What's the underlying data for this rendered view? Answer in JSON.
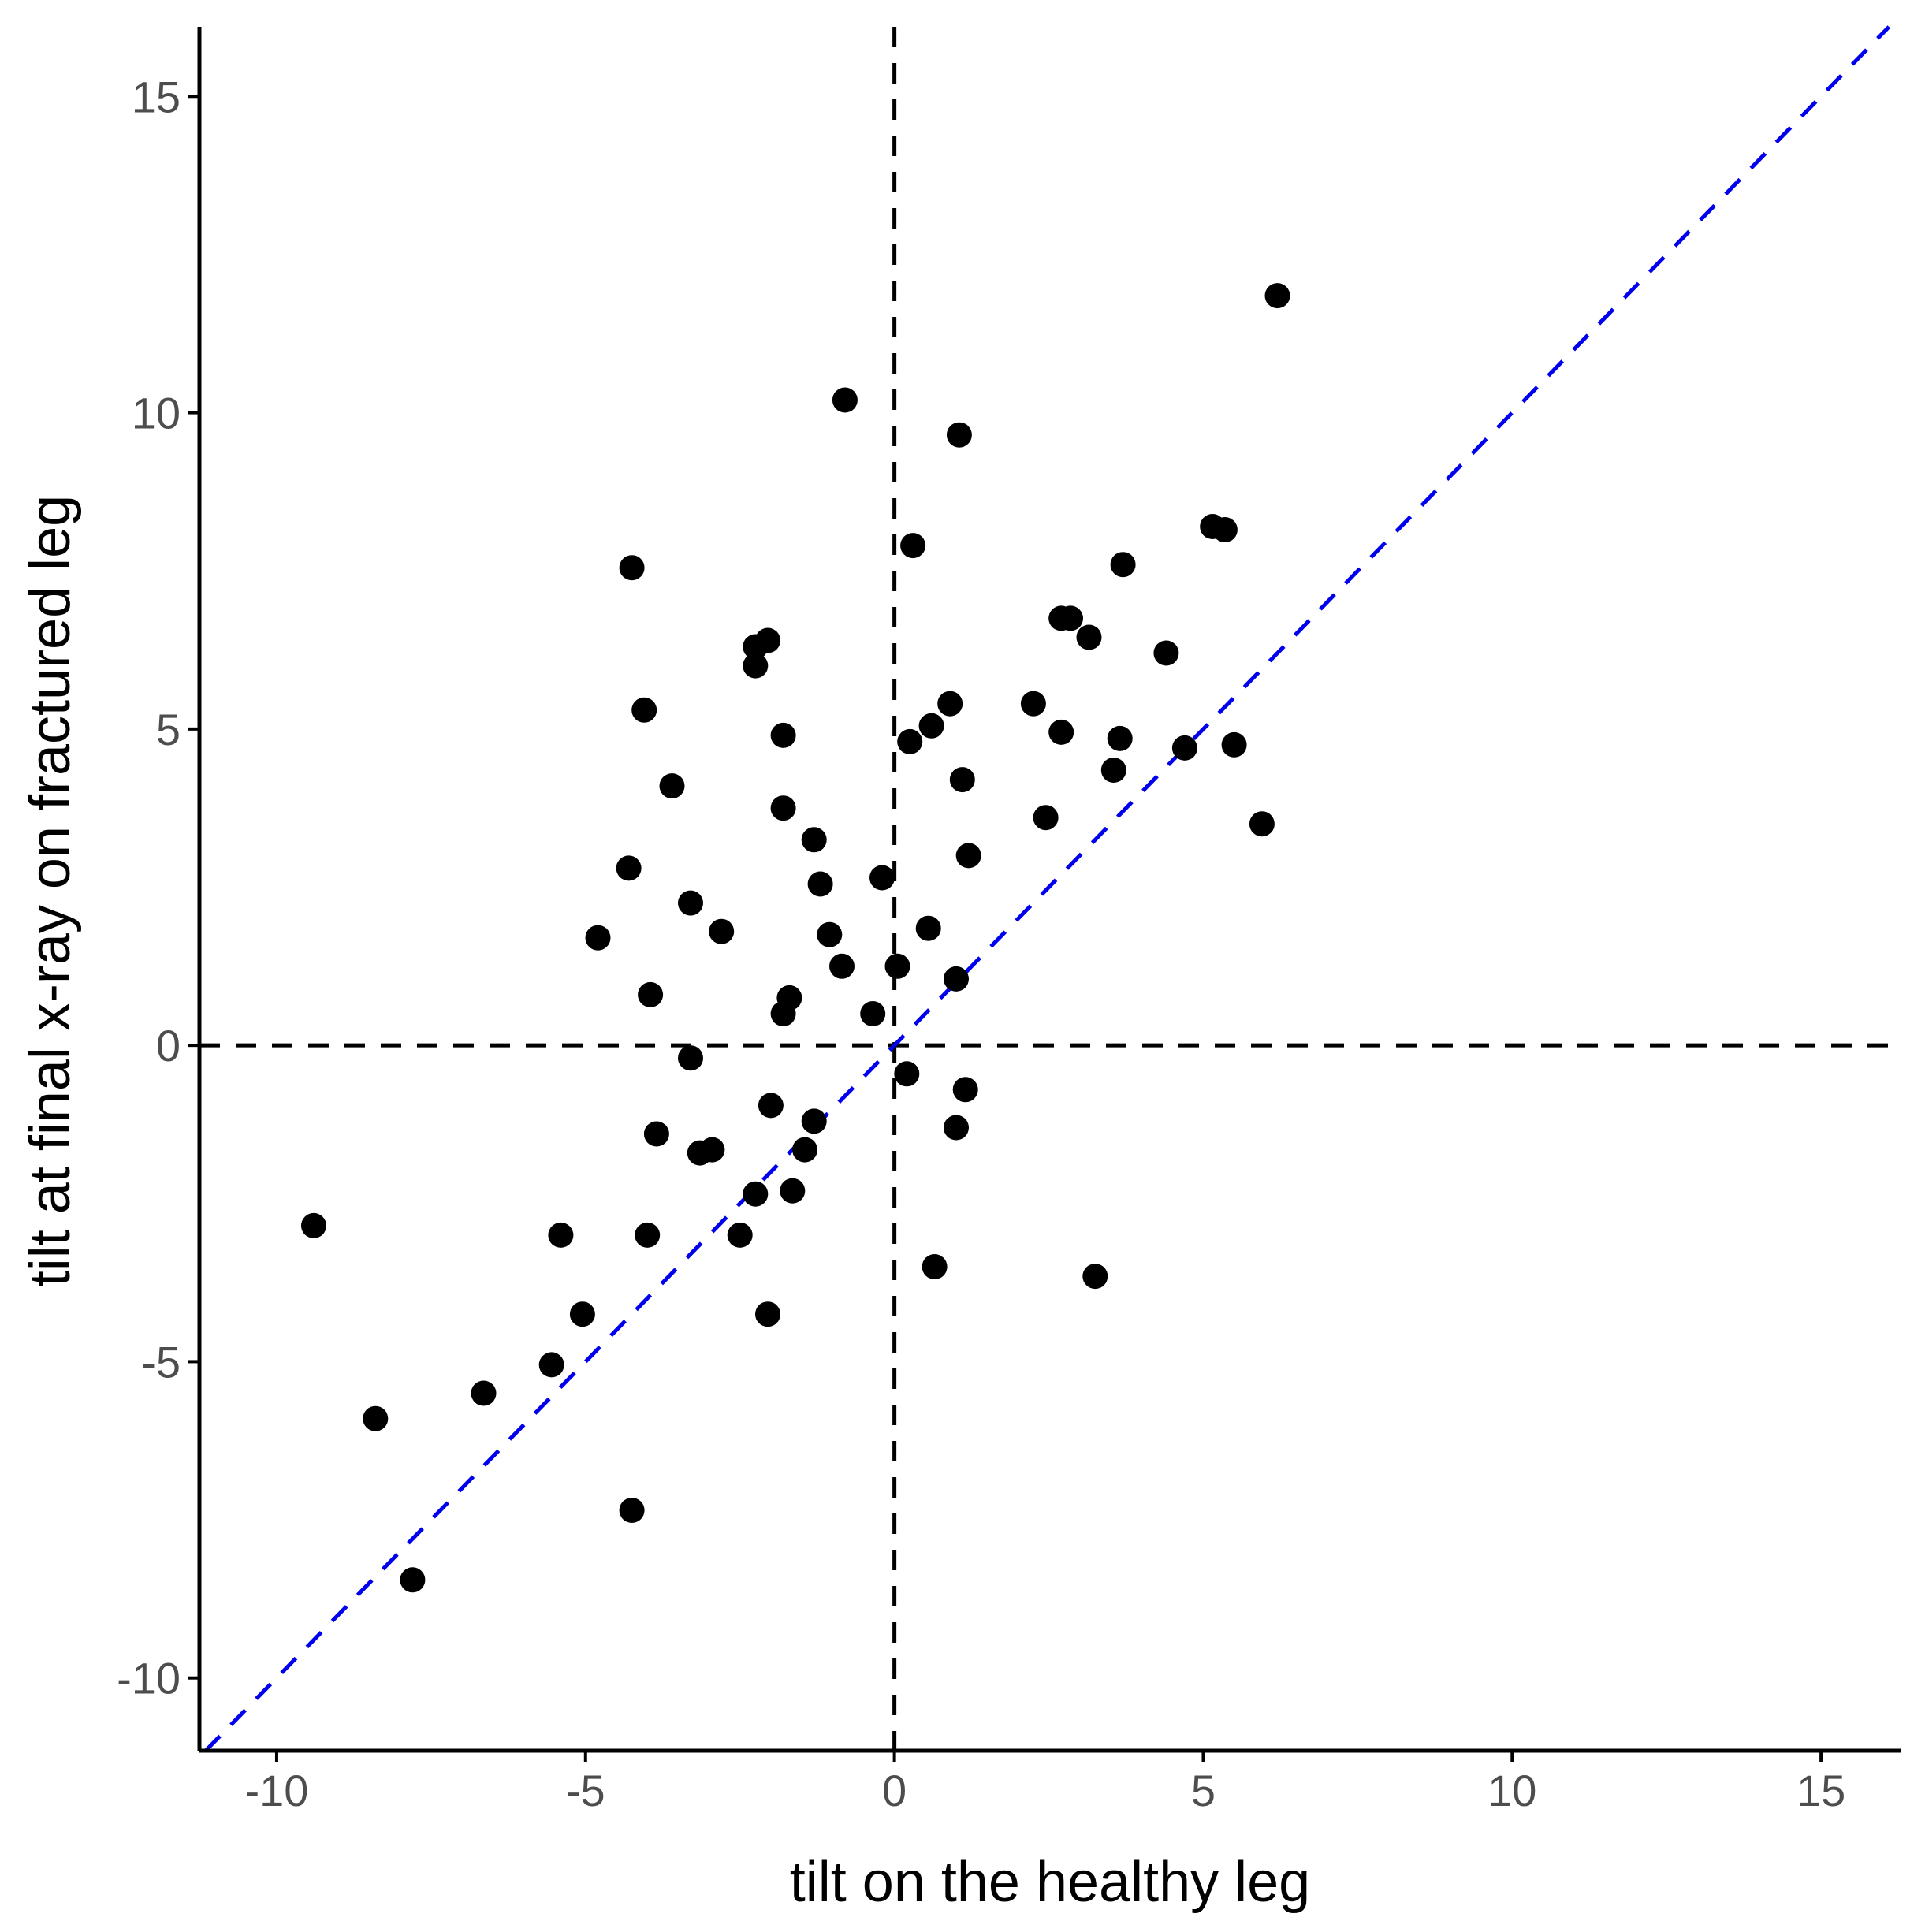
{
  "chart_data": {
    "type": "scatter",
    "title": "",
    "xlabel": "tilt on the healthy leg",
    "ylabel": "tilt at final x-ray on fractured leg",
    "xlim": [
      -11.25,
      16.3
    ],
    "ylim": [
      -11.15,
      16.1
    ],
    "xticks": [
      -10,
      -5,
      0,
      5,
      10,
      15
    ],
    "yticks": [
      -10,
      -5,
      0,
      5,
      10,
      15
    ],
    "xtick_labels": [
      "-10",
      "-5",
      "0",
      "5",
      "10",
      "15"
    ],
    "ytick_labels": [
      "-10",
      "-5",
      "0",
      "5",
      "10",
      "15"
    ],
    "reference_lines": [
      {
        "type": "vline",
        "x": 0,
        "color": "#000000",
        "style": "dashed"
      },
      {
        "type": "hline",
        "y": 0,
        "color": "#000000",
        "style": "dashed"
      },
      {
        "type": "identity",
        "slope": 1,
        "intercept": 0,
        "color": "#0000ee",
        "style": "dashed"
      }
    ],
    "point_color": "#000000",
    "points": [
      {
        "x": -9.4,
        "y": -2.85
      },
      {
        "x": -8.4,
        "y": -5.9
      },
      {
        "x": -7.8,
        "y": -8.45
      },
      {
        "x": -6.65,
        "y": -5.5
      },
      {
        "x": -5.55,
        "y": -5.05
      },
      {
        "x": -5.4,
        "y": -3.0
      },
      {
        "x": -5.05,
        "y": -4.25
      },
      {
        "x": -4.8,
        "y": 1.7
      },
      {
        "x": -4.3,
        "y": 2.8
      },
      {
        "x": -4.25,
        "y": 7.55
      },
      {
        "x": -4.25,
        "y": -7.35
      },
      {
        "x": -4.05,
        "y": 5.3
      },
      {
        "x": -4.0,
        "y": -3.0
      },
      {
        "x": -3.95,
        "y": 0.8
      },
      {
        "x": -3.85,
        "y": -1.4
      },
      {
        "x": -3.6,
        "y": 4.1
      },
      {
        "x": -3.3,
        "y": 2.25
      },
      {
        "x": -3.3,
        "y": -0.2
      },
      {
        "x": -3.15,
        "y": -1.7
      },
      {
        "x": -2.95,
        "y": -1.65
      },
      {
        "x": -2.8,
        "y": 1.8
      },
      {
        "x": -2.5,
        "y": -3.0
      },
      {
        "x": -2.25,
        "y": 6.3
      },
      {
        "x": -2.25,
        "y": 6.0
      },
      {
        "x": -2.25,
        "y": -2.35
      },
      {
        "x": -2.05,
        "y": 6.4
      },
      {
        "x": -2.05,
        "y": -4.25
      },
      {
        "x": -2.0,
        "y": -0.95
      },
      {
        "x": -1.8,
        "y": 4.9
      },
      {
        "x": -1.8,
        "y": 3.75
      },
      {
        "x": -1.8,
        "y": 0.5
      },
      {
        "x": -1.7,
        "y": 0.75
      },
      {
        "x": -1.65,
        "y": -2.3
      },
      {
        "x": -1.45,
        "y": -1.65
      },
      {
        "x": -1.3,
        "y": 3.25
      },
      {
        "x": -1.3,
        "y": -1.2
      },
      {
        "x": -1.2,
        "y": 2.55
      },
      {
        "x": -1.05,
        "y": 1.75
      },
      {
        "x": -0.85,
        "y": 1.25
      },
      {
        "x": -0.8,
        "y": 10.2
      },
      {
        "x": -0.35,
        "y": 0.5
      },
      {
        "x": -0.2,
        "y": 2.65
      },
      {
        "x": 0.05,
        "y": 1.25
      },
      {
        "x": 0.2,
        "y": -0.45
      },
      {
        "x": 0.25,
        "y": 4.8
      },
      {
        "x": 0.3,
        "y": 7.9
      },
      {
        "x": 0.55,
        "y": 1.85
      },
      {
        "x": 0.6,
        "y": 5.05
      },
      {
        "x": 0.65,
        "y": -3.5
      },
      {
        "x": 0.9,
        "y": 5.4
      },
      {
        "x": 1.0,
        "y": 1.05
      },
      {
        "x": 1.0,
        "y": -1.3
      },
      {
        "x": 1.05,
        "y": 9.65
      },
      {
        "x": 1.1,
        "y": 4.2
      },
      {
        "x": 1.15,
        "y": -0.7
      },
      {
        "x": 1.2,
        "y": 3.0
      },
      {
        "x": 2.25,
        "y": 5.4
      },
      {
        "x": 2.45,
        "y": 3.6
      },
      {
        "x": 2.7,
        "y": 6.75
      },
      {
        "x": 2.7,
        "y": 4.95
      },
      {
        "x": 2.85,
        "y": 6.75
      },
      {
        "x": 3.15,
        "y": 6.45
      },
      {
        "x": 3.25,
        "y": -3.65
      },
      {
        "x": 3.55,
        "y": 4.35
      },
      {
        "x": 3.65,
        "y": 4.85
      },
      {
        "x": 3.7,
        "y": 7.6
      },
      {
        "x": 4.4,
        "y": 6.2
      },
      {
        "x": 4.7,
        "y": 4.7
      },
      {
        "x": 5.15,
        "y": 8.2
      },
      {
        "x": 5.35,
        "y": 8.15
      },
      {
        "x": 5.5,
        "y": 4.75
      },
      {
        "x": 5.95,
        "y": 3.5
      },
      {
        "x": 6.2,
        "y": 11.85
      }
    ]
  }
}
